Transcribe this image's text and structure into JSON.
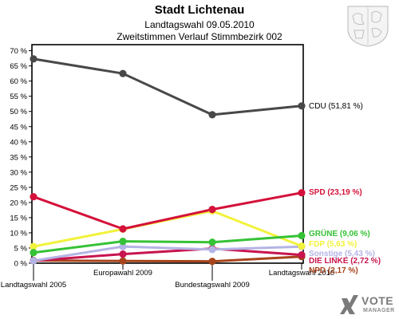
{
  "header": {
    "title": "Stadt Lichtenau",
    "subtitle": "Landtagswahl 09.05.2010",
    "subtitle2": "Zweitstimmen Verlauf Stimmbezirk 002"
  },
  "logo": {
    "line1": "VOTE",
    "line2": "MANAGER"
  },
  "chart_data": {
    "type": "line",
    "title": "Stadt Lichtenau",
    "categories": [
      "Landtagswahl 2005",
      "Europawahl 2009",
      "Bundestagswahl 2009",
      "Landtagswahl 2010"
    ],
    "y_tick_labels": [
      "0 %",
      "5 %",
      "10 %",
      "15 %",
      "20 %",
      "25 %",
      "30 %",
      "35 %",
      "40 %",
      "45 %",
      "50 %",
      "55 %",
      "60 %",
      "65 %",
      "70 %"
    ],
    "ylim": [
      0,
      72
    ],
    "grid": false,
    "legend": "right end labels",
    "series": [
      {
        "name": "CDU",
        "label": "CDU (51,81 %)",
        "color": "#484848",
        "values": [
          67.3,
          62.5,
          48.9,
          51.81
        ]
      },
      {
        "name": "SPD",
        "label": "SPD (23,19 %)",
        "color": "#d4113a",
        "values": [
          21.9,
          11.3,
          17.7,
          23.19
        ]
      },
      {
        "name": "GRÜNE",
        "label": "GRÜNE (9,06 %)",
        "color": "#36c236",
        "values": [
          3.5,
          7.2,
          6.9,
          9.06
        ]
      },
      {
        "name": "FDP",
        "label": "FDP (5,63 %)",
        "color": "#f2f23c",
        "values": [
          5.5,
          11.2,
          17.2,
          5.63
        ]
      },
      {
        "name": "Sonstige",
        "label": "Sonstige (5,43 %)",
        "color": "#b4b4e6",
        "values": [
          0.8,
          5.5,
          4.5,
          5.43
        ]
      },
      {
        "name": "DIE LINKE",
        "label": "DIE LINKE (2,72 %)",
        "color": "#c8144e",
        "values": [
          0.8,
          3.0,
          4.8,
          2.72
        ]
      },
      {
        "name": "NPD",
        "label": "NPD (2,17 %)",
        "color": "#a8441c",
        "values": [
          0.9,
          0.7,
          0.6,
          2.17
        ]
      }
    ]
  }
}
